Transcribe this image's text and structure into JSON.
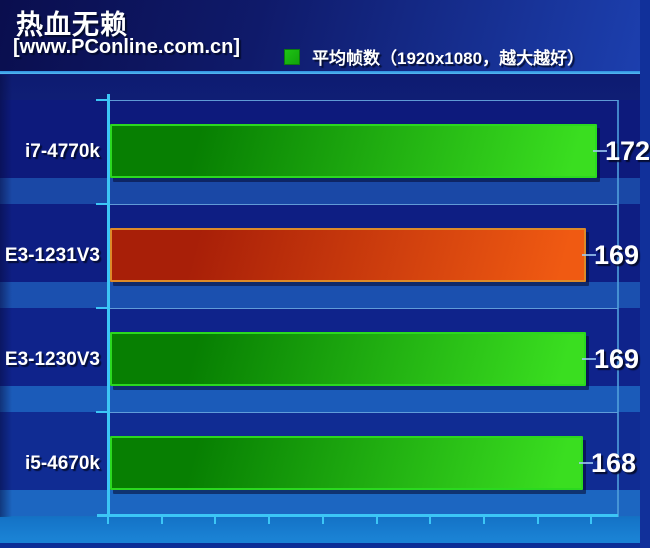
{
  "header": {
    "title": "热血无赖",
    "site": "[www.PConline.com.cn]",
    "legend": {
      "label": "平均帧数（1920x1080，越大越好）",
      "swatch_color": "#1ec314"
    }
  },
  "chart_data": {
    "type": "bar",
    "orientation": "horizontal",
    "title": "热血无赖",
    "source": "www.PConline.com.cn",
    "legend": "平均帧数（1920x1080，越大越好）",
    "categories": [
      "i7-4770k",
      "E3-1231V3",
      "E3-1230V3",
      "i5-4670k"
    ],
    "values": [
      172,
      169,
      169,
      168
    ],
    "highlight_index": 1,
    "highlighted_category": "E3-1231V3",
    "value_labels_visible": true,
    "value_axis": {
      "tick_count": 10,
      "tick_labels_visible": false,
      "gridlines": false
    },
    "colors": {
      "bar_normal_start": "#077f02",
      "bar_normal_end": "#3ade20",
      "bar_normal_border": "#2bd91f",
      "bar_highlight_start": "#a81f08",
      "bar_highlight_end": "#f05a12",
      "bar_highlight_border": "#dd8a28",
      "axis": "#3cc6f6",
      "value_text": "#ffffff"
    }
  }
}
